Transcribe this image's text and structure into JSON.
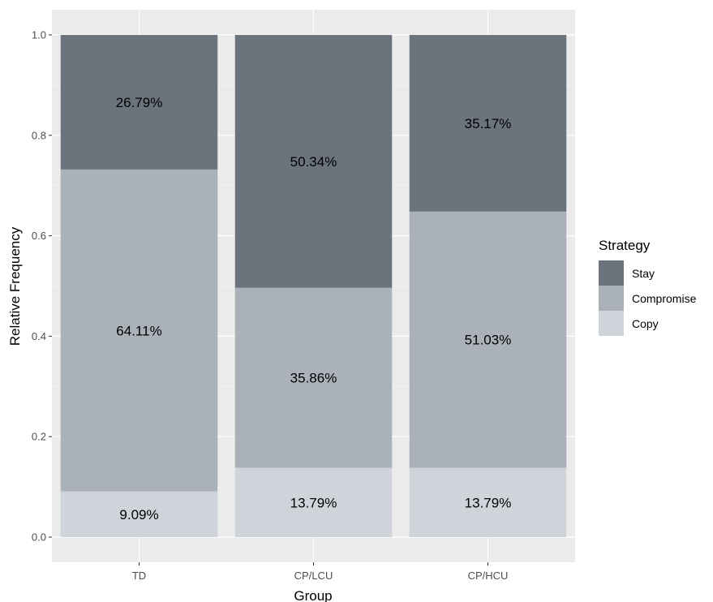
{
  "chart_data": {
    "type": "bar",
    "stacked": true,
    "categories": [
      "TD",
      "CP/LCU",
      "CP/HCU"
    ],
    "series": [
      {
        "name": "Copy",
        "values": [
          0.0909,
          0.1379,
          0.1379
        ],
        "labels": [
          "9.09%",
          "13.79%",
          "13.79%"
        ]
      },
      {
        "name": "Compromise",
        "values": [
          0.6411,
          0.3586,
          0.5103
        ],
        "labels": [
          "64.11%",
          "35.86%",
          "51.03%"
        ]
      },
      {
        "name": "Stay",
        "values": [
          0.2679,
          0.5034,
          0.3517
        ],
        "labels": [
          "26.79%",
          "50.34%",
          "35.17%"
        ]
      }
    ],
    "colors": {
      "Copy": "#cfd4db",
      "Compromise": "#aab1b9",
      "Stay": "#6b737c"
    },
    "xlabel": "Group",
    "ylabel": "Relative Frequency",
    "ylim": [
      0,
      1.0
    ],
    "yticks": [
      "0.0",
      "0.2",
      "0.4",
      "0.6",
      "0.8",
      "1.0"
    ],
    "grid": true,
    "panel_background": "#ebebeb",
    "legend": {
      "title": "Strategy",
      "position": "right",
      "order": [
        "Stay",
        "Compromise",
        "Copy"
      ]
    }
  }
}
